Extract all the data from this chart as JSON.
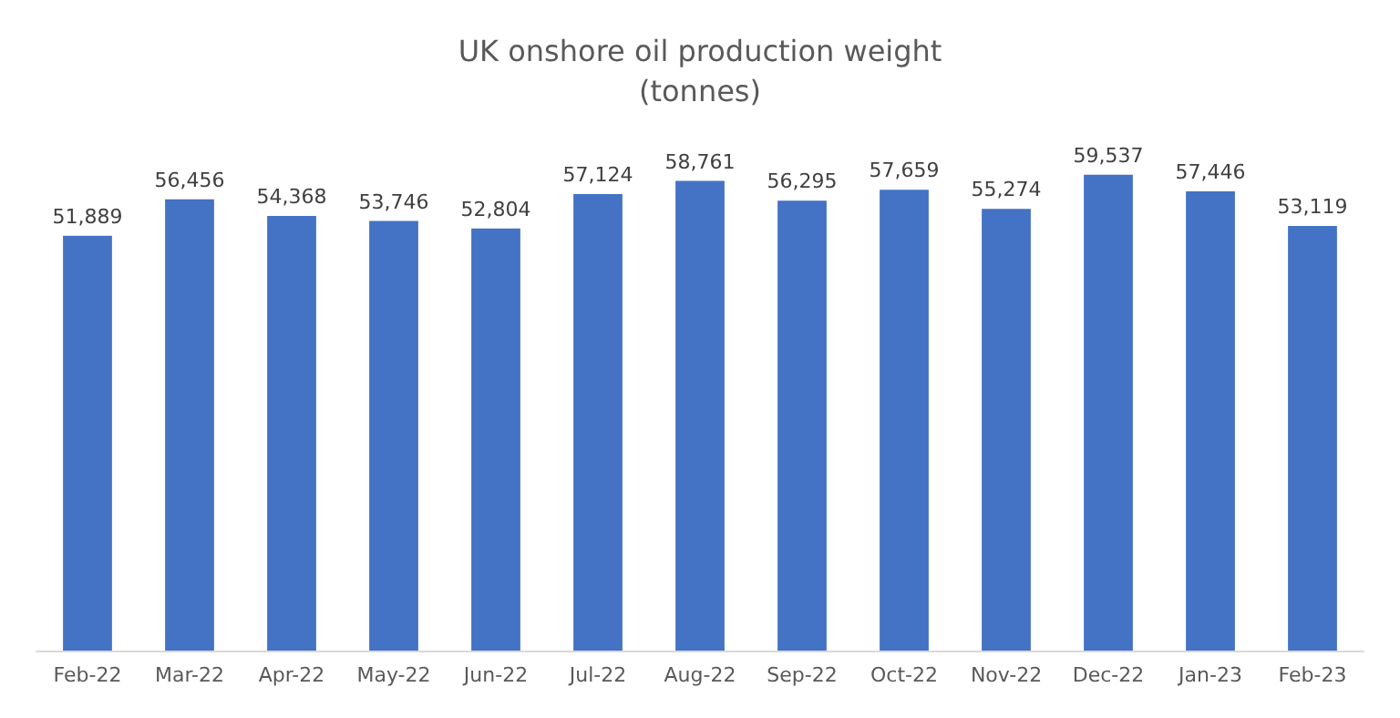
{
  "chart_data": {
    "type": "bar",
    "title": "UK onshore oil production weight\n(tonnes)",
    "categories": [
      "Feb-22",
      "Mar-22",
      "Apr-22",
      "May-22",
      "Jun-22",
      "Jul-22",
      "Aug-22",
      "Sep-22",
      "Oct-22",
      "Nov-22",
      "Dec-22",
      "Jan-23",
      "Feb-23"
    ],
    "values": [
      51889,
      56456,
      54368,
      53746,
      52804,
      57124,
      58761,
      56295,
      57659,
      55274,
      59537,
      57446,
      53119
    ],
    "value_labels": [
      "51,889",
      "56,456",
      "54,368",
      "53,746",
      "52,804",
      "57,124",
      "58,761",
      "56,295",
      "57,659",
      "55,274",
      "59,537",
      "57,446",
      "53,119"
    ],
    "color": "#4472c4",
    "tick_labels": "x"
  }
}
